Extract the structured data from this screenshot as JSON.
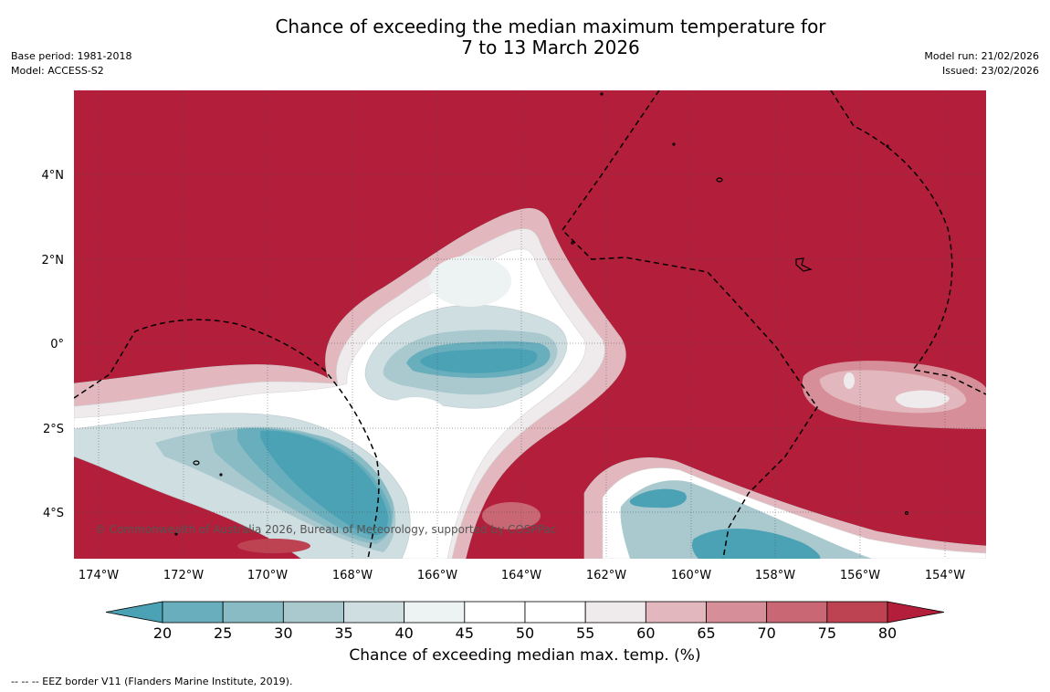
{
  "title": {
    "line1": "Chance of exceeding the median maximum temperature for",
    "line2": "7 to 13 March 2026"
  },
  "meta_left": {
    "base_period": "Base period: 1981-2018",
    "model": "Model: ACCESS-S2"
  },
  "meta_right": {
    "model_run": "Model run: 21/02/2026",
    "issued": "Issued: 23/02/2026"
  },
  "map": {
    "lat_labels": [
      "4°N",
      "2°N",
      "0°",
      "2°S",
      "4°S"
    ],
    "lon_labels": [
      "174°W",
      "172°W",
      "170°W",
      "168°W",
      "166°W",
      "164°W",
      "162°W",
      "160°W",
      "158°W",
      "156°W",
      "154°W"
    ],
    "copyright": "© Commonwealth of Australia 2026, Bureau of Meteorology, supported by COSPPac"
  },
  "colorbar": {
    "tick_labels": [
      "20",
      "25",
      "30",
      "35",
      "40",
      "45",
      "50",
      "55",
      "60",
      "65",
      "70",
      "75",
      "80"
    ],
    "colors": [
      "#4aa2b4",
      "#68aebd",
      "#89bbc5",
      "#a9c9cf",
      "#cfdee1",
      "#edf2f3",
      "#ffffff",
      "#ffffff",
      "#efeaeb",
      "#e2b8be",
      "#d68f98",
      "#c96874",
      "#bd4352",
      "#b31e3a"
    ],
    "title": "Chance of exceeding median max. temp. (%)"
  },
  "footnote": "--  --  -- EEZ border V11 (Flanders Marine Institute, 2019)."
}
